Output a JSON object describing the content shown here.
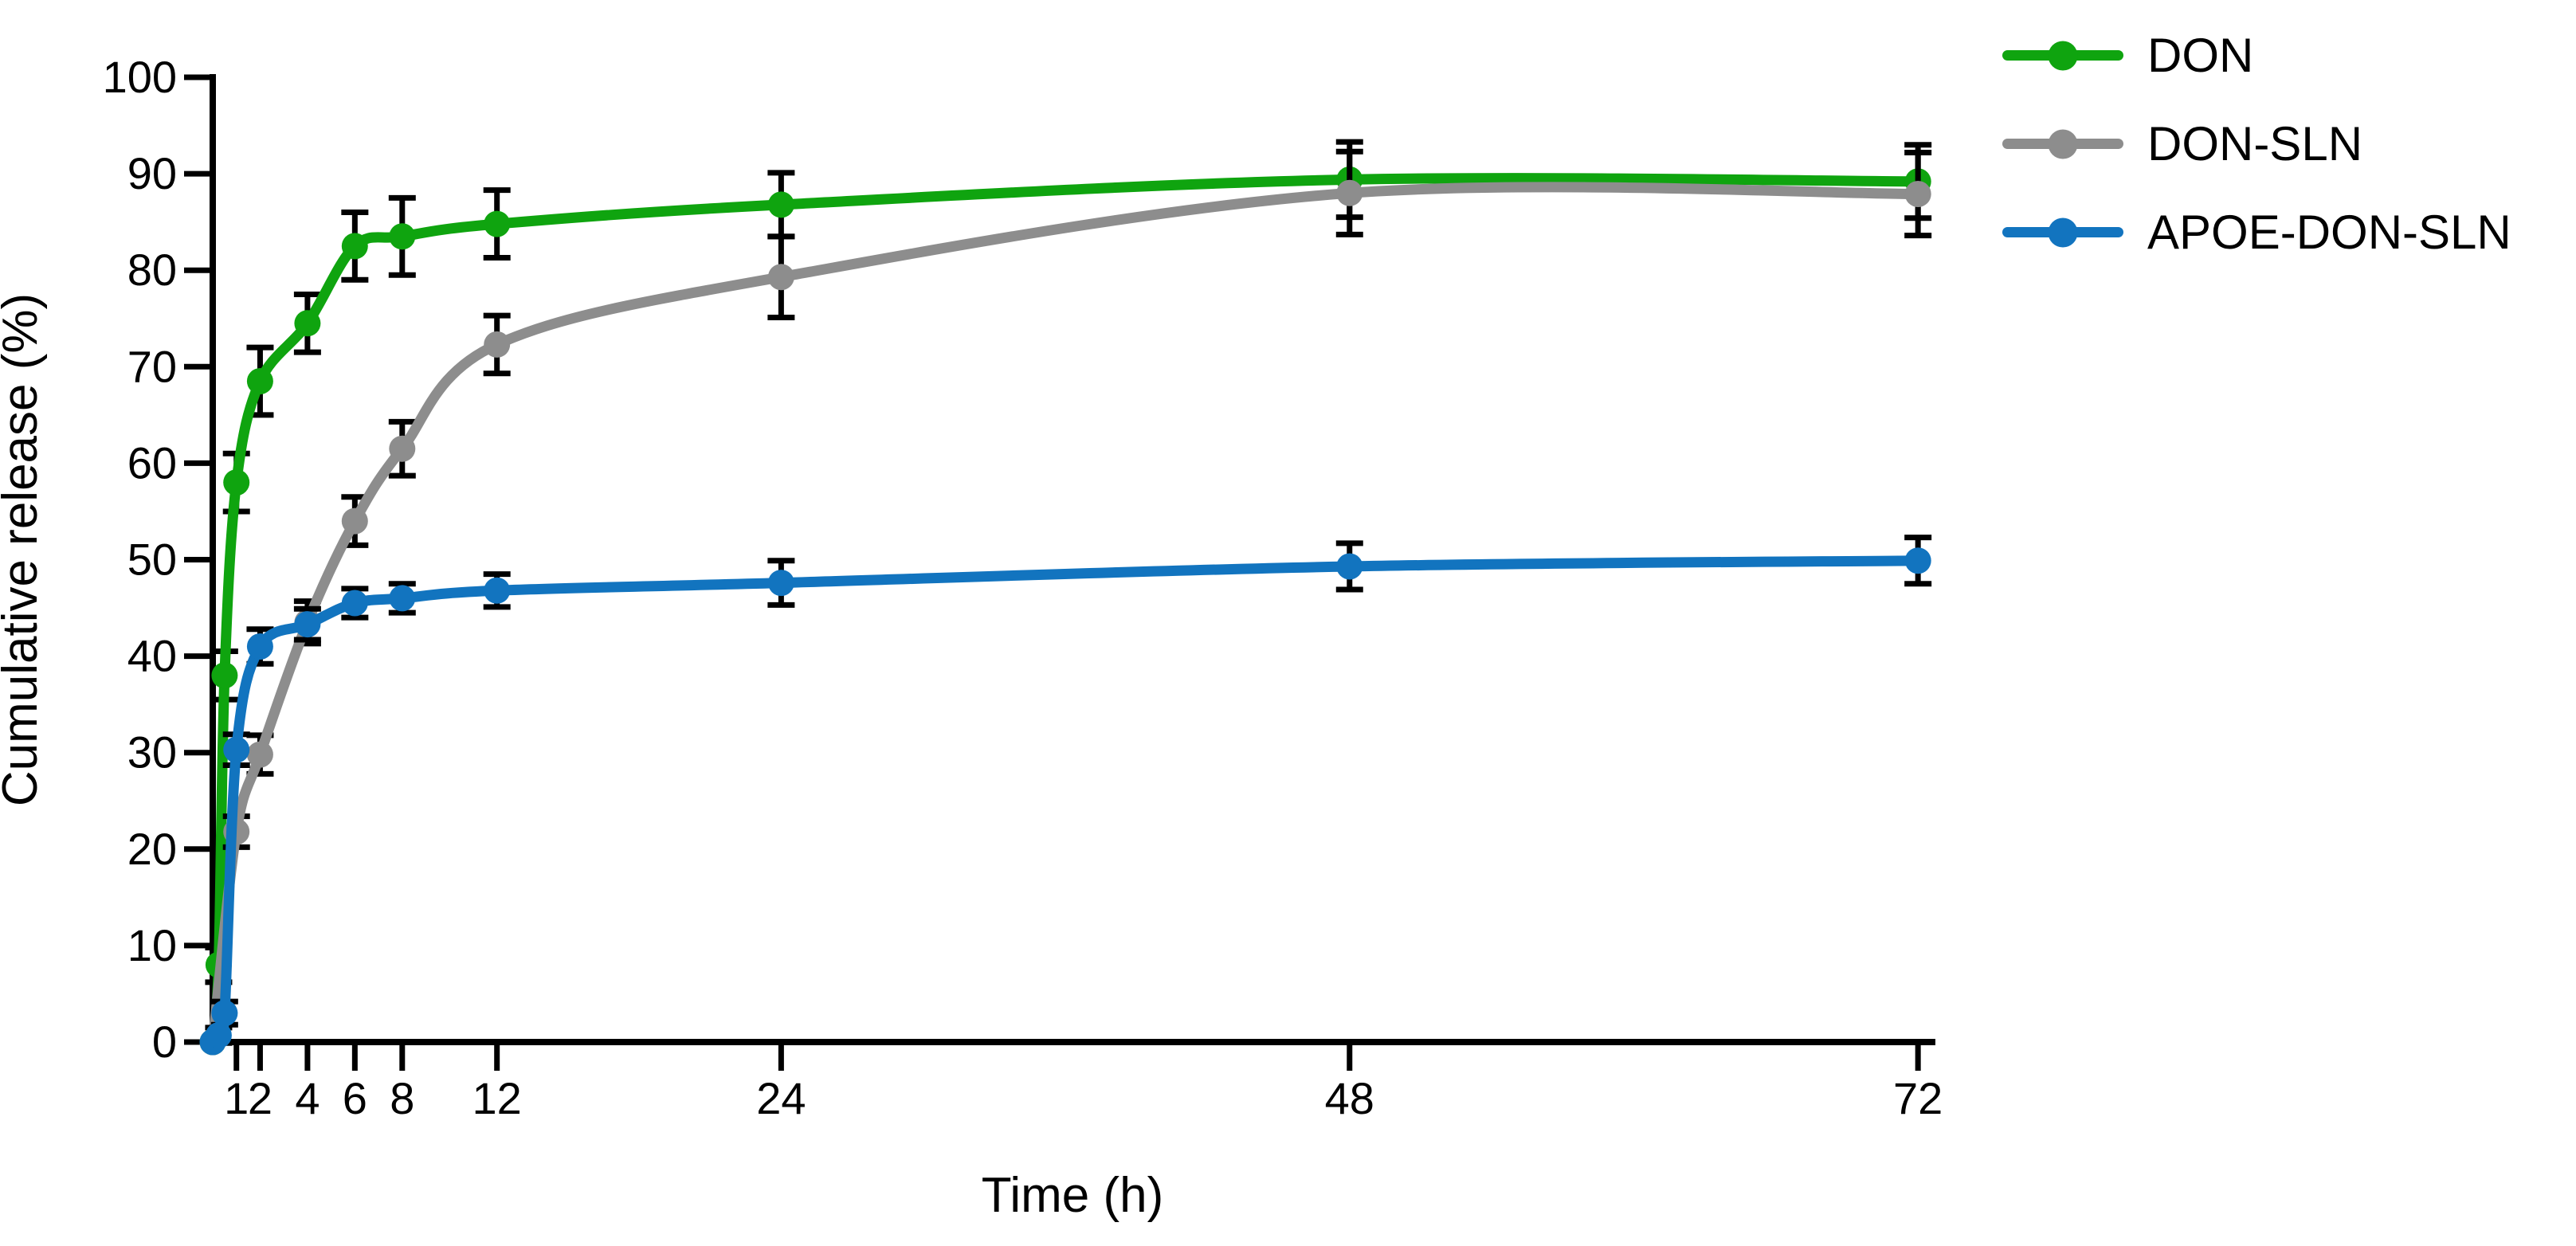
{
  "chart_data": {
    "type": "line",
    "title": "",
    "xlabel": "Time (h)",
    "ylabel": "Cumulative release (%)",
    "xlim": [
      0,
      72.6
    ],
    "ylim": [
      0,
      100
    ],
    "x_ticks": [
      1,
      2,
      4,
      6,
      8,
      12,
      24,
      48,
      72
    ],
    "y_ticks": [
      0,
      10,
      20,
      30,
      40,
      50,
      60,
      70,
      80,
      90,
      100
    ],
    "grid": false,
    "legend_position": "top-right",
    "error_bars": true,
    "marker": "circle",
    "series": [
      {
        "name": "DON",
        "color": "#0FA40F",
        "x": [
          0,
          0.25,
          0.5,
          1,
          2,
          4,
          6,
          8,
          12,
          24,
          48,
          72
        ],
        "y": [
          0,
          8,
          38,
          58,
          68.5,
          74.5,
          82.5,
          83.5,
          84.8,
          86.8,
          89.4,
          89.2
        ],
        "err": [
          0,
          1.8,
          2.5,
          3,
          3.5,
          3,
          3.5,
          4,
          3.5,
          3.3,
          3.9,
          3.8
        ]
      },
      {
        "name": "DON-SLN",
        "color": "#8D8D8D",
        "x": [
          0,
          1,
          2,
          4,
          6,
          8,
          12,
          24,
          48,
          72
        ],
        "y": [
          0,
          21.8,
          29.8,
          43.5,
          54,
          61.5,
          72.3,
          79.3,
          88,
          87.9
        ],
        "err": [
          0,
          1.6,
          2,
          2.2,
          2.5,
          2.8,
          3,
          4.2,
          4.3,
          4.3
        ]
      },
      {
        "name": "APOE-DON-SLN",
        "color": "#1274BF",
        "x": [
          0,
          0.25,
          0.5,
          1,
          2,
          4,
          6,
          8,
          12,
          24,
          48,
          72
        ],
        "y": [
          0,
          0.7,
          3,
          30.3,
          41,
          43.3,
          45.5,
          46,
          46.8,
          47.6,
          49.3,
          49.9
        ],
        "err": [
          0,
          0.8,
          1.2,
          1.6,
          1.8,
          1.6,
          1.5,
          1.5,
          1.7,
          2.3,
          2.4,
          2.4
        ]
      }
    ]
  }
}
